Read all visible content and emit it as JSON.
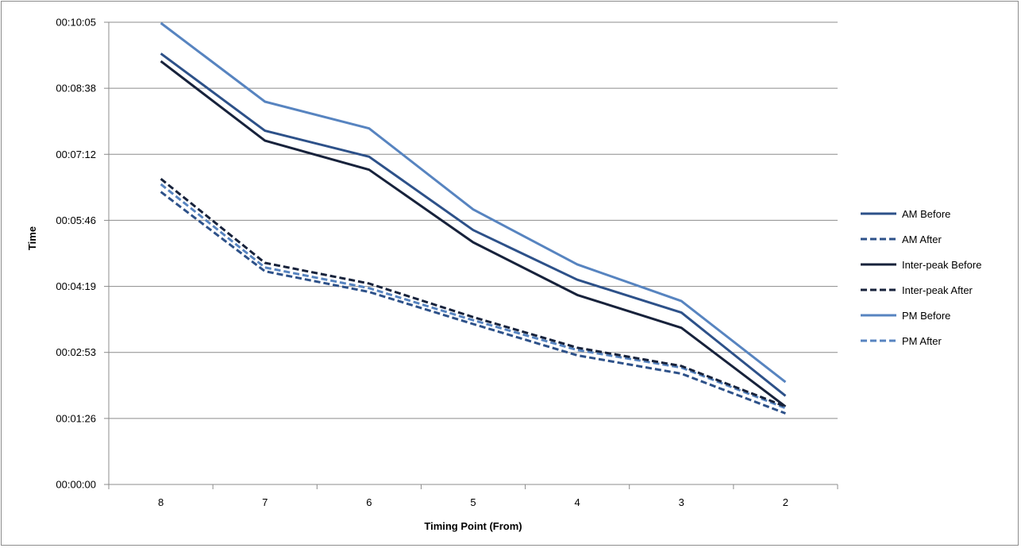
{
  "chart_data": {
    "type": "line",
    "title": "",
    "xlabel": "Timing Point (From)",
    "ylabel": "Time",
    "categories": [
      "8",
      "7",
      "6",
      "5",
      "4",
      "3",
      "2"
    ],
    "yticks": [
      "00:00:00",
      "00:01:26",
      "00:02:53",
      "00:04:19",
      "00:05:46",
      "00:07:12",
      "00:08:38",
      "00:10:05"
    ],
    "ylim_seconds": [
      0,
      605
    ],
    "grid": true,
    "legend_position": "right",
    "series": [
      {
        "name": "AM Before",
        "values": [
          564,
          463,
          429,
          333,
          268,
          225,
          116
        ],
        "color": "#2d5189",
        "dashed": false
      },
      {
        "name": "AM After",
        "values": [
          383,
          279,
          252,
          210,
          169,
          145,
          93
        ],
        "color": "#2d5189",
        "dashed": true
      },
      {
        "name": "Inter-peak Before",
        "values": [
          554,
          450,
          412,
          317,
          248,
          205,
          102
        ],
        "color": "#17223b",
        "dashed": false
      },
      {
        "name": "Inter-peak After",
        "values": [
          400,
          290,
          263,
          219,
          179,
          155,
          102
        ],
        "color": "#17223b",
        "dashed": true
      },
      {
        "name": "PM Before",
        "values": [
          604,
          501,
          466,
          360,
          288,
          240,
          134
        ],
        "color": "#5784c0",
        "dashed": false
      },
      {
        "name": "PM After",
        "values": [
          393,
          284,
          257,
          215,
          176,
          153,
          100
        ],
        "color": "#5784c0",
        "dashed": true
      }
    ]
  }
}
